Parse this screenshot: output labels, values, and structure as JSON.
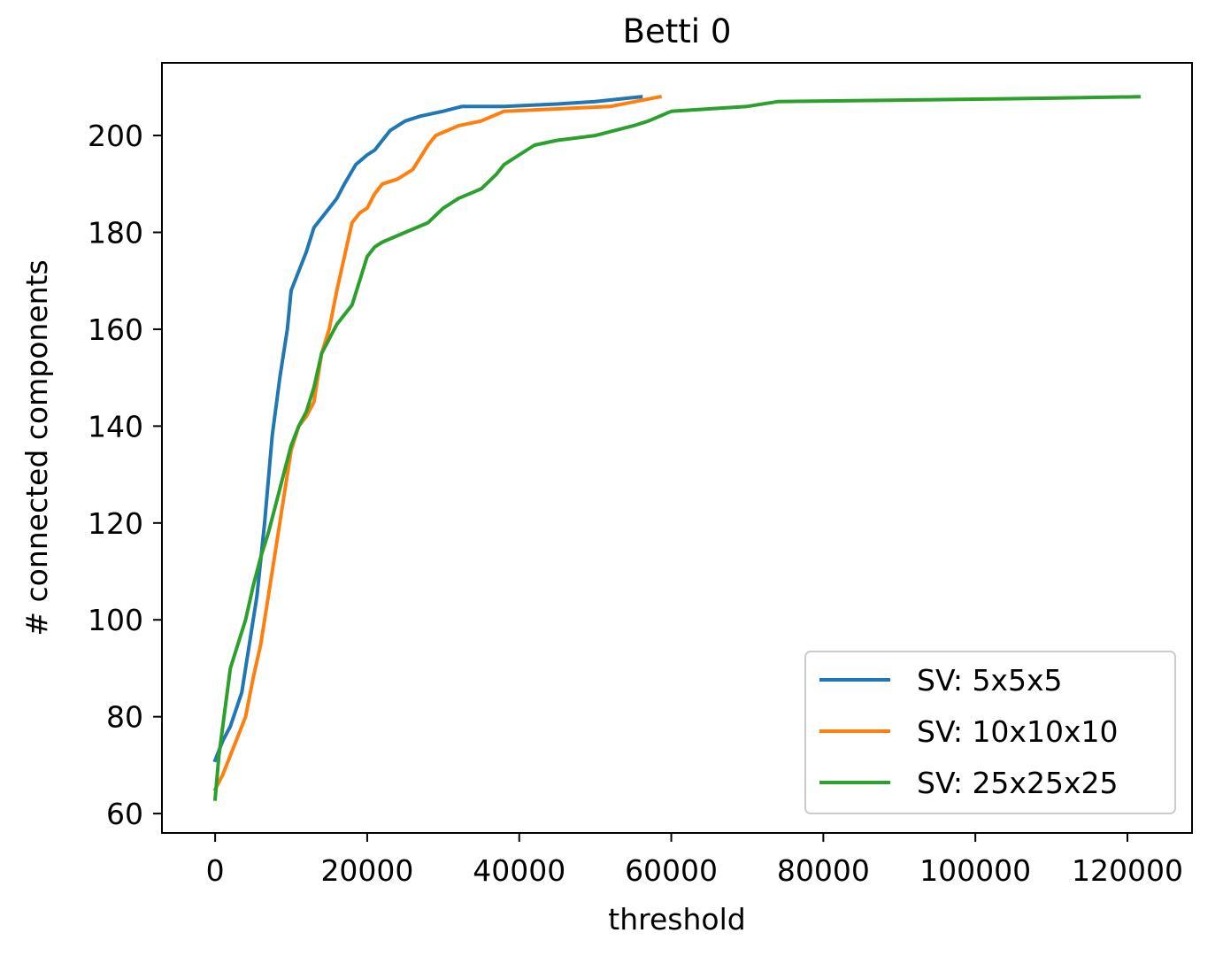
{
  "chart_data": {
    "type": "line",
    "title": "Betti 0",
    "xlabel": "threshold",
    "ylabel": "# connected components",
    "xlim": [
      -7000,
      128500
    ],
    "ylim": [
      56,
      215
    ],
    "xticks": [
      0,
      20000,
      40000,
      60000,
      80000,
      100000,
      120000
    ],
    "yticks": [
      60,
      80,
      100,
      120,
      140,
      160,
      180,
      200
    ],
    "grid": false,
    "legend_position": "lower-right",
    "series": [
      {
        "name": "SV: 5x5x5",
        "color": "#1f77b4",
        "x": [
          0,
          1000,
          2000,
          3500,
          4500,
          5500,
          6500,
          7500,
          8500,
          9500,
          10000,
          11000,
          12000,
          13000,
          14000,
          15000,
          16000,
          17000,
          18500,
          20000,
          21000,
          22000,
          22500,
          23000,
          25000,
          27000,
          30000,
          32500,
          38000,
          45000,
          50000,
          56000
        ],
        "y": [
          71,
          75,
          78,
          85,
          95,
          105,
          120,
          138,
          150,
          160,
          168,
          172,
          176,
          181,
          183,
          185,
          187,
          190,
          194,
          196,
          197,
          199,
          200,
          201,
          203,
          204,
          205,
          206,
          206,
          206.5,
          207,
          208
        ]
      },
      {
        "name": "SV: 10x10x10",
        "color": "#ff7f0e",
        "x": [
          0,
          1000,
          2000,
          3000,
          4000,
          5000,
          6000,
          7000,
          8000,
          9000,
          10000,
          11000,
          12000,
          13000,
          14000,
          15000,
          16000,
          17000,
          18000,
          19000,
          20000,
          21000,
          22000,
          24000,
          26000,
          28000,
          29000,
          32000,
          35000,
          38000,
          45000,
          52000,
          58500
        ],
        "y": [
          65,
          68,
          72,
          76,
          80,
          88,
          95,
          105,
          115,
          125,
          135,
          140,
          142,
          145,
          155,
          160,
          168,
          175,
          182,
          184,
          185,
          188,
          190,
          191,
          193,
          198,
          200,
          202,
          203,
          205,
          205.5,
          206,
          208
        ]
      },
      {
        "name": "SV: 25x25x25",
        "color": "#2ca02c",
        "x": [
          0,
          500,
          1000,
          2000,
          3000,
          4000,
          5000,
          6000,
          7000,
          8000,
          9000,
          10000,
          11000,
          12000,
          13000,
          14000,
          15000,
          16000,
          17000,
          18000,
          19000,
          20000,
          21000,
          22000,
          25000,
          28000,
          30000,
          32000,
          35000,
          37000,
          38000,
          40000,
          42000,
          45000,
          50000,
          55000,
          57000,
          60000,
          70000,
          74000,
          90000,
          110000,
          121500
        ],
        "y": [
          63,
          72,
          78,
          90,
          95,
          100,
          107,
          113,
          118,
          124,
          130,
          136,
          140,
          143,
          148,
          155,
          158,
          161,
          163,
          165,
          170,
          175,
          177,
          178,
          180,
          182,
          185,
          187,
          189,
          192,
          194,
          196,
          198,
          199,
          200,
          202,
          203,
          205,
          206,
          207,
          207.3,
          207.7,
          208
        ]
      }
    ]
  }
}
